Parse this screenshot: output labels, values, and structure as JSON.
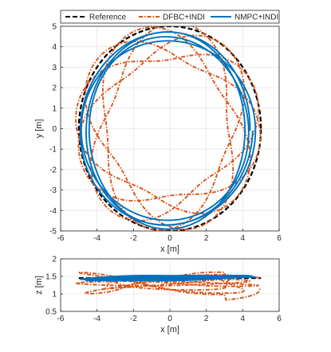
{
  "chart_data": [
    {
      "type": "line",
      "panel": "xy",
      "xlabel": "x [m]",
      "ylabel": "y [m]",
      "xlim": [
        -6,
        6
      ],
      "ylim": [
        -5,
        5
      ],
      "xticks": [
        -6,
        -4,
        -2,
        0,
        2,
        4,
        6
      ],
      "yticks": [
        -5,
        -4,
        -3,
        -2,
        -1,
        0,
        1,
        2,
        3,
        4,
        5
      ],
      "grid": true,
      "legend": {
        "placement": "top",
        "orientation": "horizontal"
      },
      "series": [
        {
          "name": "Reference",
          "color": "#000000",
          "style": "dashed",
          "shape": "circle",
          "center": [
            0,
            0
          ],
          "radius": 5
        },
        {
          "name": "DFBC+INDI",
          "color": "#D95319",
          "style": "dashdot",
          "shape": "rose",
          "base_radius": 4.2,
          "lobes": 3,
          "amplitude_range": [
            0.85,
            0.95
          ],
          "approx_extent": {
            "x": [
              -5.0,
              4.7
            ],
            "y": [
              -4.9,
              5.0
            ]
          }
        },
        {
          "name": "NMPC+INDI",
          "color": "#0072BD",
          "style": "solid",
          "shape": "loops",
          "radius_range": [
            4.2,
            4.9
          ],
          "loops": 4,
          "approx_extent": {
            "x": [
              -4.9,
              4.5
            ],
            "y": [
              -4.9,
              4.6
            ]
          }
        }
      ]
    },
    {
      "type": "line",
      "panel": "xz",
      "xlabel": "x [m]",
      "ylabel": "z [m]",
      "xlim": [
        -6,
        6
      ],
      "ylim": [
        0.5,
        2
      ],
      "xticks": [
        -6,
        -4,
        -2,
        0,
        2,
        4,
        6
      ],
      "yticks": [
        0.5,
        1,
        1.5,
        2
      ],
      "grid": true,
      "series": [
        {
          "name": "Reference",
          "color": "#000000",
          "style": "dashed",
          "z_value": 1.45,
          "x_range": [
            -5,
            5
          ]
        },
        {
          "name": "DFBC+INDI",
          "color": "#D95319",
          "style": "dashdot",
          "z_range": [
            0.6,
            1.85
          ],
          "x_range": [
            -5,
            4.5
          ]
        },
        {
          "name": "NMPC+INDI",
          "color": "#0072BD",
          "style": "solid",
          "z_range": [
            1.38,
            1.52
          ],
          "x_range": [
            -5,
            5
          ]
        }
      ]
    }
  ]
}
